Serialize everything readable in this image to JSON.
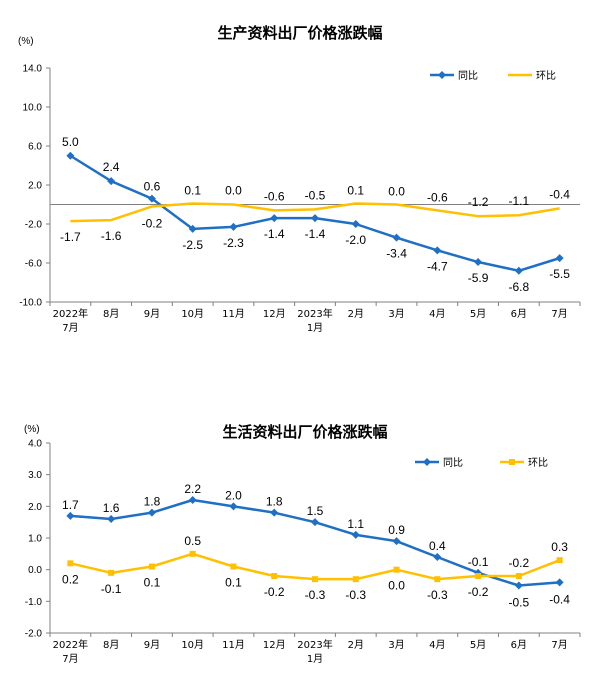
{
  "chart_data": [
    {
      "type": "line",
      "title": "生产资料出厂价格涨跌幅",
      "unit": "(%)",
      "ylim": [
        -10.0,
        14.0
      ],
      "yticks": [
        "14.0",
        "10.0",
        "6.0",
        "2.0",
        "-2.0",
        "-6.0",
        "-10.0"
      ],
      "grid": false,
      "legend": "top-right",
      "categories": [
        [
          "2022年",
          "7月"
        ],
        [
          "8月"
        ],
        [
          "9月"
        ],
        [
          "10月"
        ],
        [
          "11月"
        ],
        [
          "12月"
        ],
        [
          "2023年",
          "1月"
        ],
        [
          "2月"
        ],
        [
          "3月"
        ],
        [
          "4月"
        ],
        [
          "5月"
        ],
        [
          "6月"
        ],
        [
          "7月"
        ]
      ],
      "series": [
        {
          "name": "同比",
          "color": "#1f6fc5",
          "marker": "diamond",
          "values": [
            5.0,
            2.4,
            0.6,
            -2.5,
            -2.3,
            -1.4,
            -1.4,
            -2.0,
            -3.4,
            -4.7,
            -5.9,
            -6.8,
            -5.5
          ],
          "labels": [
            "5.0",
            "2.4",
            "0.6",
            "-2.5",
            "-2.3",
            "-1.4",
            "-1.4",
            "-2.0",
            "-3.4",
            "-4.7",
            "-5.9",
            "-6.8",
            "-5.5"
          ]
        },
        {
          "name": "环比",
          "color": "#ffc000",
          "marker": "none",
          "values": [
            -1.7,
            -1.6,
            -0.2,
            0.1,
            0.0,
            -0.6,
            -0.5,
            0.1,
            0.0,
            -0.6,
            -1.2,
            -1.1,
            -0.4
          ],
          "labels": [
            "-1.7",
            "-1.6",
            "-0.2",
            "0.1",
            "0.0",
            "-0.6",
            "-0.5",
            "0.1",
            "0.0",
            "-0.6",
            "-1.2",
            "-1.1",
            "-0.4"
          ]
        }
      ]
    },
    {
      "type": "line",
      "title": "生活资料出厂价格涨跌幅",
      "unit": "(%)",
      "ylim": [
        -2.0,
        4.0
      ],
      "yticks": [
        "4.0",
        "3.0",
        "2.0",
        "1.0",
        "0.0",
        "-1.0",
        "-2.0"
      ],
      "grid": false,
      "legend": "top-right",
      "categories": [
        [
          "2022年",
          "7月"
        ],
        [
          "8月"
        ],
        [
          "9月"
        ],
        [
          "10月"
        ],
        [
          "11月"
        ],
        [
          "12月"
        ],
        [
          "2023年",
          "1月"
        ],
        [
          "2月"
        ],
        [
          "3月"
        ],
        [
          "4月"
        ],
        [
          "5月"
        ],
        [
          "6月"
        ],
        [
          "7月"
        ]
      ],
      "series": [
        {
          "name": "同比",
          "color": "#1f6fc5",
          "marker": "diamond",
          "values": [
            1.7,
            1.6,
            1.8,
            2.2,
            2.0,
            1.8,
            1.5,
            1.1,
            0.9,
            0.4,
            -0.1,
            -0.5,
            -0.4
          ],
          "labels": [
            "1.7",
            "1.6",
            "1.8",
            "2.2",
            "2.0",
            "1.8",
            "1.5",
            "1.1",
            "0.9",
            "0.4",
            "-0.1",
            "-0.5",
            "-0.4"
          ]
        },
        {
          "name": "环比",
          "color": "#ffc000",
          "marker": "square",
          "values": [
            0.2,
            -0.1,
            0.1,
            0.5,
            0.1,
            -0.2,
            -0.3,
            -0.3,
            0.0,
            -0.3,
            -0.2,
            -0.2,
            0.3
          ],
          "labels": [
            "0.2",
            "-0.1",
            "0.1",
            "0.5",
            "0.1",
            "-0.2",
            "-0.3",
            "-0.3",
            "0.0",
            "-0.3",
            "-0.2",
            "-0.2",
            "0.3"
          ]
        }
      ]
    }
  ]
}
